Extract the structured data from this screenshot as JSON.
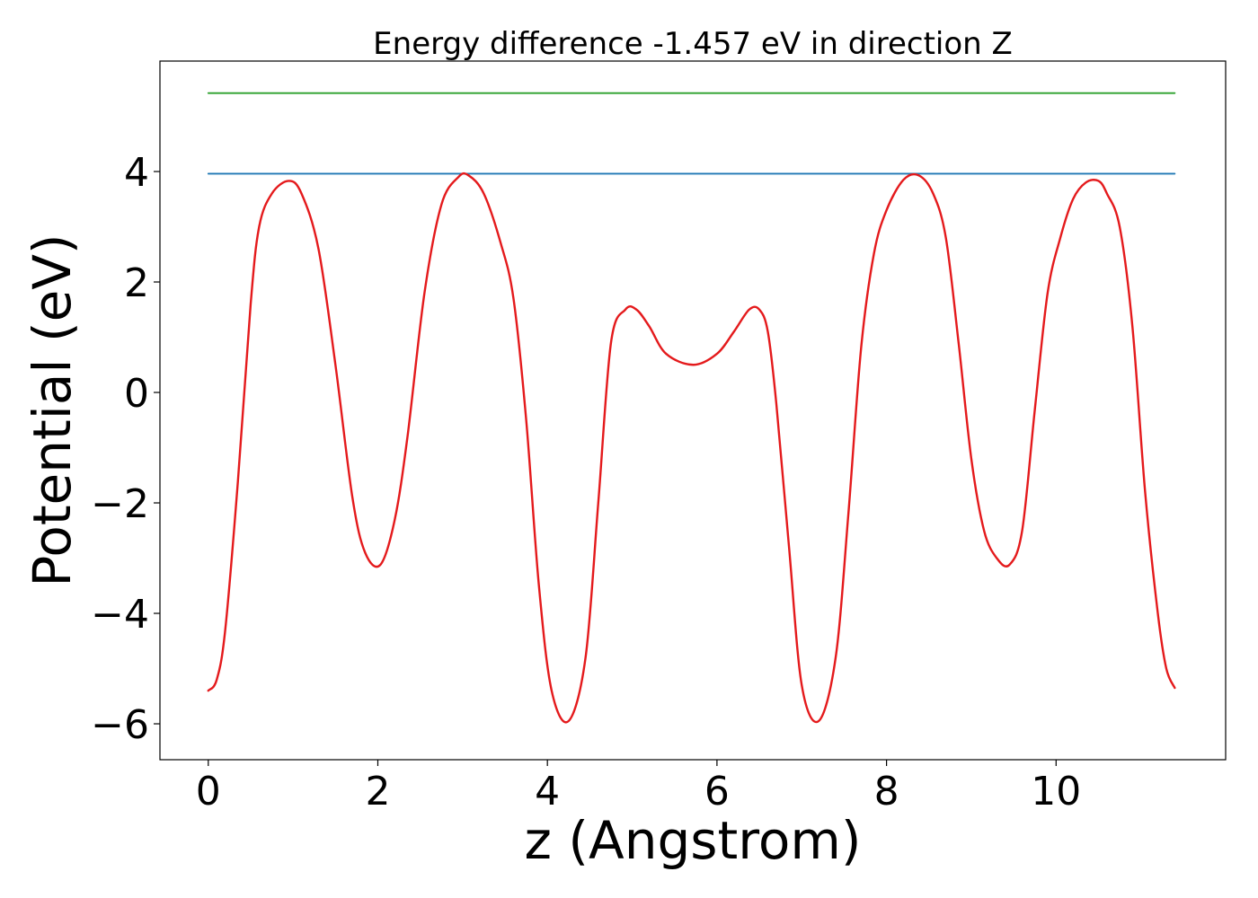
{
  "chart_data": {
    "type": "line",
    "title": "Energy difference -1.457 eV in direction Z",
    "xlabel": "z (Angstrom)",
    "ylabel": "Potential (eV)",
    "xlim": [
      -0.57,
      12.0
    ],
    "ylim": [
      -6.65,
      6.0
    ],
    "xticks": [
      0,
      2,
      4,
      6,
      8,
      10
    ],
    "yticks": [
      -6,
      -4,
      -2,
      0,
      2,
      4
    ],
    "xtick_labels": [
      "0",
      "2",
      "4",
      "6",
      "8",
      "10"
    ],
    "ytick_labels": [
      "−6",
      "−4",
      "−2",
      "0",
      "2",
      "4"
    ],
    "grid": false,
    "series": [
      {
        "color": "#2ca02c",
        "style": "hline",
        "x": [
          0,
          11.4
        ],
        "y": [
          5.42,
          5.42
        ]
      },
      {
        "color": "#1f77b4",
        "style": "hline",
        "x": [
          0,
          11.4
        ],
        "y": [
          3.96,
          3.96
        ]
      },
      {
        "color": "#e41a1c",
        "style": "smooth",
        "x": [
          0.0,
          0.1,
          0.2,
          0.35,
          0.5,
          0.6,
          0.75,
          0.95,
          1.1,
          1.3,
          1.5,
          1.7,
          1.85,
          2.03,
          2.2,
          2.35,
          2.55,
          2.75,
          2.95,
          3.07,
          3.25,
          3.45,
          3.6,
          3.75,
          3.9,
          4.05,
          4.25,
          4.45,
          4.6,
          4.75,
          4.92,
          5.05,
          5.2,
          5.4,
          5.72,
          6.0,
          6.2,
          6.38,
          6.5,
          6.6,
          6.7,
          6.85,
          7.0,
          7.2,
          7.4,
          7.55,
          7.7,
          7.85,
          8.0,
          8.2,
          8.38,
          8.55,
          8.7,
          8.85,
          9.0,
          9.15,
          9.3,
          9.45,
          9.6,
          9.75,
          9.9,
          10.05,
          10.2,
          10.35,
          10.5,
          10.6,
          10.75,
          10.9,
          11.05,
          11.2,
          11.3,
          11.4
        ],
        "y": [
          -5.4,
          -5.2,
          -4.3,
          -1.6,
          1.6,
          3.0,
          3.6,
          3.83,
          3.6,
          2.6,
          0.5,
          -1.9,
          -2.9,
          -3.12,
          -2.3,
          -0.8,
          1.8,
          3.4,
          3.9,
          3.93,
          3.6,
          2.7,
          1.7,
          -0.5,
          -3.5,
          -5.4,
          -5.95,
          -4.8,
          -2.0,
          0.9,
          1.5,
          1.5,
          1.2,
          0.7,
          0.5,
          0.7,
          1.1,
          1.5,
          1.5,
          1.1,
          -0.2,
          -2.8,
          -5.3,
          -5.95,
          -4.8,
          -2.2,
          0.8,
          2.5,
          3.3,
          3.85,
          3.93,
          3.6,
          2.8,
          0.9,
          -1.2,
          -2.5,
          -3.0,
          -3.12,
          -2.5,
          -0.3,
          1.8,
          2.8,
          3.5,
          3.8,
          3.83,
          3.6,
          3.0,
          1.2,
          -1.8,
          -4.0,
          -5.0,
          -5.35
        ]
      }
    ]
  }
}
